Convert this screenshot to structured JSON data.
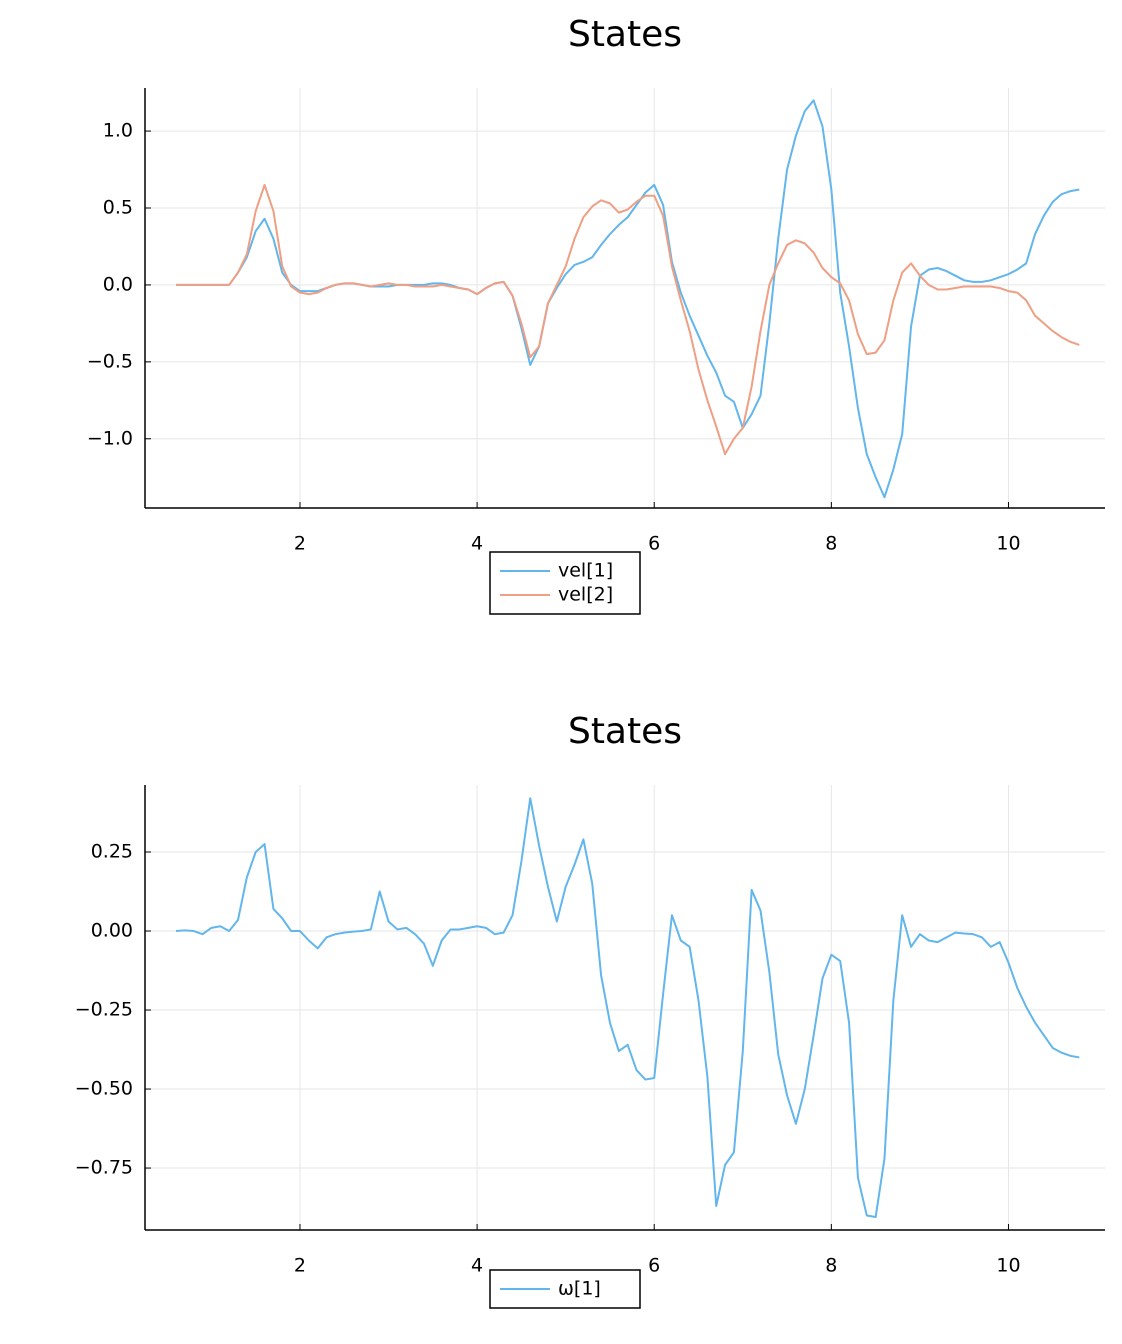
{
  "chart_data": [
    {
      "type": "line",
      "title": "States",
      "x": [
        0.6,
        0.7,
        0.8,
        0.9,
        1.0,
        1.1,
        1.2,
        1.3,
        1.4,
        1.5,
        1.6,
        1.7,
        1.8,
        1.9,
        2.0,
        2.1,
        2.2,
        2.3,
        2.4,
        2.5,
        2.6,
        2.7,
        2.8,
        2.9,
        3.0,
        3.1,
        3.2,
        3.3,
        3.4,
        3.5,
        3.6,
        3.7,
        3.8,
        3.9,
        4.0,
        4.1,
        4.2,
        4.3,
        4.4,
        4.5,
        4.6,
        4.7,
        4.8,
        4.9,
        5.0,
        5.1,
        5.2,
        5.3,
        5.4,
        5.5,
        5.6,
        5.7,
        5.8,
        5.9,
        6.0,
        6.1,
        6.2,
        6.3,
        6.4,
        6.5,
        6.6,
        6.7,
        6.8,
        6.9,
        7.0,
        7.1,
        7.2,
        7.3,
        7.4,
        7.5,
        7.6,
        7.7,
        7.8,
        7.9,
        8.0,
        8.1,
        8.2,
        8.3,
        8.4,
        8.5,
        8.6,
        8.7,
        8.8,
        8.9,
        9.0,
        9.1,
        9.2,
        9.3,
        9.4,
        9.5,
        9.6,
        9.7,
        9.8,
        9.9,
        10.0,
        10.1,
        10.2,
        10.3,
        10.4,
        10.5,
        10.6,
        10.7,
        10.8
      ],
      "series": [
        {
          "name": "vel[1]",
          "color": "#62b6ec",
          "values": [
            0,
            0,
            0,
            0,
            0,
            0,
            0,
            0.08,
            0.18,
            0.35,
            0.43,
            0.3,
            0.08,
            0.0,
            -0.04,
            -0.04,
            -0.04,
            -0.02,
            0.0,
            0.01,
            0.01,
            0.0,
            -0.01,
            -0.01,
            -0.01,
            0.0,
            0.0,
            0.0,
            0.0,
            0.01,
            0.01,
            0.0,
            -0.02,
            -0.03,
            -0.06,
            -0.02,
            0.01,
            0.02,
            -0.07,
            -0.28,
            -0.52,
            -0.4,
            -0.12,
            -0.02,
            0.07,
            0.13,
            0.15,
            0.18,
            0.26,
            0.33,
            0.39,
            0.44,
            0.52,
            0.6,
            0.65,
            0.52,
            0.15,
            -0.05,
            -0.2,
            -0.33,
            -0.46,
            -0.57,
            -0.72,
            -0.76,
            -0.93,
            -0.84,
            -0.72,
            -0.25,
            0.3,
            0.75,
            0.97,
            1.13,
            1.2,
            1.03,
            0.62,
            -0.05,
            -0.4,
            -0.8,
            -1.1,
            -1.25,
            -1.38,
            -1.2,
            -0.97,
            -0.27,
            0.06,
            0.1,
            0.11,
            0.09,
            0.06,
            0.03,
            0.02,
            0.02,
            0.03,
            0.05,
            0.07,
            0.1,
            0.14,
            0.33,
            0.45,
            0.54,
            0.59,
            0.61,
            0.62
          ]
        },
        {
          "name": "vel[2]",
          "color": "#ee9f84",
          "values": [
            0,
            0,
            0,
            0,
            0,
            0,
            0,
            0.08,
            0.2,
            0.48,
            0.65,
            0.48,
            0.12,
            -0.01,
            -0.05,
            -0.06,
            -0.05,
            -0.02,
            0.0,
            0.01,
            0.01,
            0.0,
            -0.01,
            0.0,
            0.01,
            0.0,
            0.0,
            -0.01,
            -0.01,
            -0.01,
            0.0,
            -0.01,
            -0.02,
            -0.03,
            -0.06,
            -0.02,
            0.01,
            0.02,
            -0.07,
            -0.25,
            -0.47,
            -0.4,
            -0.12,
            0.0,
            0.12,
            0.3,
            0.44,
            0.51,
            0.55,
            0.53,
            0.47,
            0.49,
            0.54,
            0.58,
            0.58,
            0.45,
            0.12,
            -0.1,
            -0.3,
            -0.55,
            -0.75,
            -0.92,
            -1.1,
            -1.0,
            -0.93,
            -0.66,
            -0.3,
            0.0,
            0.14,
            0.26,
            0.29,
            0.27,
            0.21,
            0.11,
            0.05,
            0.01,
            -0.1,
            -0.32,
            -0.45,
            -0.44,
            -0.36,
            -0.1,
            0.08,
            0.14,
            0.06,
            0.0,
            -0.03,
            -0.03,
            -0.02,
            -0.01,
            -0.01,
            -0.01,
            -0.01,
            -0.02,
            -0.04,
            -0.05,
            -0.1,
            -0.2,
            -0.25,
            -0.3,
            -0.34,
            -0.37,
            -0.39
          ]
        }
      ],
      "xlim": [
        0.25,
        11.09
      ],
      "xticks": [
        2,
        4,
        6,
        8,
        10
      ],
      "ylim": [
        -1.45,
        1.28
      ],
      "yticks": [
        {
          "value": -1.0,
          "label": "−1.0"
        },
        {
          "value": -0.5,
          "label": "−0.5"
        },
        {
          "value": 0.0,
          "label": "0.0"
        },
        0.5,
        {
          "value": 1.0,
          "label": "1.0"
        }
      ],
      "grid": true,
      "legend": "bottom"
    },
    {
      "type": "line",
      "title": "States",
      "x": [
        0.6,
        0.7,
        0.8,
        0.9,
        1.0,
        1.1,
        1.2,
        1.3,
        1.4,
        1.5,
        1.6,
        1.7,
        1.8,
        1.9,
        2.0,
        2.1,
        2.2,
        2.3,
        2.4,
        2.5,
        2.6,
        2.7,
        2.8,
        2.9,
        3.0,
        3.1,
        3.2,
        3.3,
        3.4,
        3.5,
        3.6,
        3.7,
        3.8,
        3.9,
        4.0,
        4.1,
        4.2,
        4.3,
        4.4,
        4.5,
        4.6,
        4.7,
        4.8,
        4.9,
        5.0,
        5.1,
        5.2,
        5.3,
        5.4,
        5.5,
        5.6,
        5.7,
        5.8,
        5.9,
        6.0,
        6.1,
        6.2,
        6.3,
        6.4,
        6.5,
        6.6,
        6.7,
        6.8,
        6.9,
        7.0,
        7.1,
        7.2,
        7.3,
        7.4,
        7.5,
        7.6,
        7.7,
        7.8,
        7.9,
        8.0,
        8.1,
        8.2,
        8.3,
        8.4,
        8.5,
        8.6,
        8.7,
        8.8,
        8.9,
        9.0,
        9.1,
        9.2,
        9.3,
        9.4,
        9.5,
        9.6,
        9.7,
        9.8,
        9.9,
        10.0,
        10.1,
        10.2,
        10.3,
        10.4,
        10.5,
        10.6,
        10.7,
        10.8
      ],
      "series": [
        {
          "name": "ω[1]",
          "color": "#62b6ec",
          "values": [
            0,
            0.002,
            0.0,
            -0.01,
            0.01,
            0.015,
            0.0,
            0.035,
            0.17,
            0.25,
            0.275,
            0.07,
            0.04,
            0.0,
            0.0,
            -0.03,
            -0.055,
            -0.02,
            -0.01,
            -0.005,
            -0.002,
            0.0,
            0.005,
            0.125,
            0.03,
            0.005,
            0.01,
            -0.01,
            -0.04,
            -0.11,
            -0.03,
            0.005,
            0.005,
            0.01,
            0.015,
            0.01,
            -0.01,
            -0.005,
            0.05,
            0.22,
            0.42,
            0.27,
            0.14,
            0.03,
            0.14,
            0.21,
            0.29,
            0.15,
            -0.14,
            -0.29,
            -0.38,
            -0.36,
            -0.44,
            -0.47,
            -0.465,
            -0.2,
            0.05,
            -0.03,
            -0.05,
            -0.22,
            -0.46,
            -0.87,
            -0.74,
            -0.7,
            -0.38,
            0.13,
            0.065,
            -0.13,
            -0.39,
            -0.52,
            -0.61,
            -0.5,
            -0.33,
            -0.15,
            -0.075,
            -0.095,
            -0.29,
            -0.78,
            -0.9,
            -0.905,
            -0.72,
            -0.22,
            0.05,
            -0.05,
            -0.01,
            -0.03,
            -0.035,
            -0.02,
            -0.005,
            -0.008,
            -0.01,
            -0.02,
            -0.05,
            -0.035,
            -0.1,
            -0.18,
            -0.24,
            -0.29,
            -0.33,
            -0.37,
            -0.385,
            -0.395,
            -0.4
          ]
        }
      ],
      "xlim": [
        0.25,
        11.09
      ],
      "xticks": [
        2,
        4,
        6,
        8,
        10
      ],
      "ylim": [
        -0.946,
        0.462
      ],
      "yticks": [
        {
          "value": -0.75,
          "label": "−0.75"
        },
        {
          "value": -0.5,
          "label": "−0.50"
        },
        {
          "value": -0.25,
          "label": "−0.25"
        },
        {
          "value": 0.0,
          "label": "0.00"
        },
        0.25
      ],
      "grid": true,
      "legend": "bottom"
    }
  ]
}
